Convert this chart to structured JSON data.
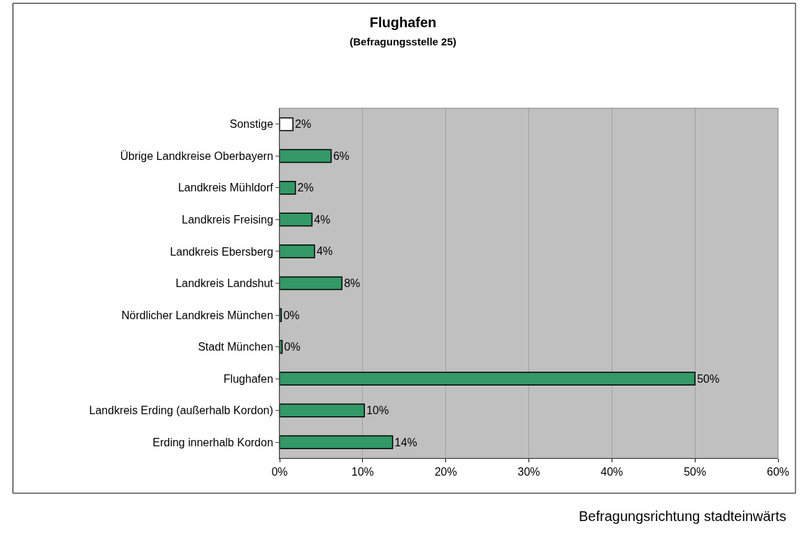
{
  "chart_data": {
    "type": "bar",
    "orientation": "horizontal",
    "title": "Flughafen",
    "subtitle": "(Befragungsstelle 25)",
    "categories": [
      "Sonstige",
      "Übrige Landkreise Oberbayern",
      "Landkreis Mühldorf",
      "Landkreis Freising",
      "Landkreis Ebersberg",
      "Landkreis Landshut",
      "Nördlicher Landkreis München",
      "Stadt München",
      "Flughafen",
      "Landkreis Erding (außerhalb Kordon)",
      "Erding innerhalb Kordon"
    ],
    "values": [
      1.6,
      6.2,
      1.9,
      3.9,
      4.2,
      7.5,
      0.2,
      0.3,
      50.0,
      10.2,
      13.6
    ],
    "value_labels": [
      "2%",
      "6%",
      "2%",
      "4%",
      "4%",
      "8%",
      "0%",
      "0%",
      "50%",
      "10%",
      "14%"
    ],
    "colors": [
      "#ffffff",
      "#339966",
      "#339966",
      "#339966",
      "#339966",
      "#339966",
      "#339966",
      "#339966",
      "#339966",
      "#339966",
      "#339966"
    ],
    "xlim": [
      0,
      60
    ],
    "xticks": [
      {
        "value": 0,
        "label": "0%"
      },
      {
        "value": 10,
        "label": "10%"
      },
      {
        "value": 20,
        "label": "20%"
      },
      {
        "value": 30,
        "label": "30%"
      },
      {
        "value": 40,
        "label": "40%"
      },
      {
        "value": 50,
        "label": "50%"
      },
      {
        "value": 60,
        "label": "60%"
      }
    ],
    "grid": "x",
    "annotations": [
      "Befragungsrichtung stadteinwärts"
    ]
  }
}
